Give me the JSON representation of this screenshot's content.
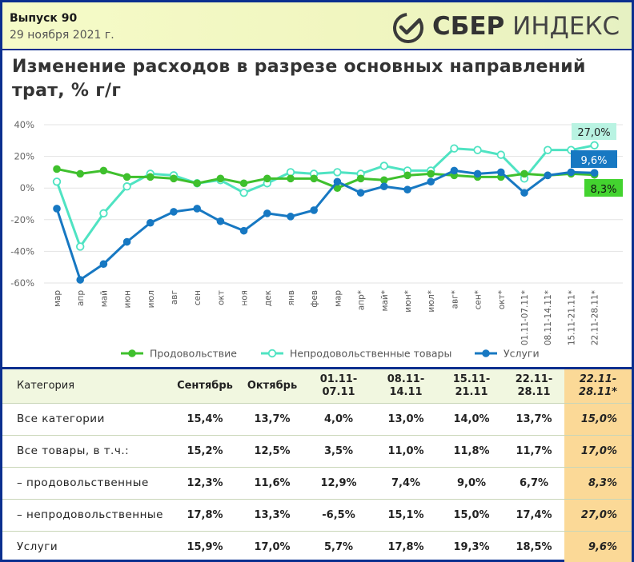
{
  "header": {
    "issue": "Выпуск 90",
    "date": "29 ноября 2021 г.",
    "logo_bold": "СБЕР",
    "logo_light": "ИНДЕКС"
  },
  "colors": {
    "food": "#3fc02d",
    "nonfood": "#4fe3c2",
    "services": "#1778c2",
    "frame": "#0b2f8f",
    "highlight": "#fbd997"
  },
  "chart_data": {
    "type": "line",
    "title": "Изменение расходов в разрезе основных направлений трат, % г/г",
    "ylim": [
      -60,
      40
    ],
    "yticks": [
      40,
      20,
      0,
      -20,
      -40,
      -60
    ],
    "ytick_labels": [
      "40%",
      "20%",
      "0%",
      "-20%",
      "-40%",
      "-60%"
    ],
    "grid": true,
    "legend_position": "bottom",
    "categories": [
      "мар",
      "апр",
      "май",
      "июн",
      "июл",
      "авг",
      "сен",
      "окт",
      "ноя",
      "дек",
      "янв",
      "фев",
      "мар",
      "апр*",
      "май*",
      "июн*",
      "июл*",
      "авг*",
      "сен*",
      "окт*",
      "01.11-07.11*",
      "08.11-14.11*",
      "15.11-21.11*",
      "22.11-28.11*"
    ],
    "series": [
      {
        "name": "Продовольствие",
        "color": "#3fc02d",
        "marker": "filled",
        "values": [
          12,
          9,
          11,
          7,
          7,
          6,
          3,
          6,
          3,
          6,
          6,
          6,
          0,
          6,
          5,
          8,
          9,
          8,
          7,
          7,
          9,
          8,
          9,
          8.3
        ],
        "end_label": "8,3%"
      },
      {
        "name": "Непродовольственные товары",
        "color": "#4fe3c2",
        "marker": "hollow",
        "values": [
          4,
          -37,
          -16,
          1,
          9,
          8,
          3,
          5,
          -3,
          3,
          10,
          9,
          10,
          9,
          14,
          11,
          11,
          25,
          24,
          21,
          6,
          24,
          24,
          27
        ],
        "end_label": "27,0%"
      },
      {
        "name": "Услуги",
        "color": "#1778c2",
        "marker": "filled",
        "values": [
          -13,
          -58,
          -48,
          -34,
          -22,
          -15,
          -13,
          -21,
          -27,
          -16,
          -18,
          -14,
          4,
          -3,
          1,
          -1,
          4,
          11,
          9,
          10,
          -3,
          8,
          10,
          9.6
        ],
        "end_label": "9,6%"
      }
    ]
  },
  "table": {
    "headers": [
      "Категория",
      "Сентябрь",
      "Октябрь",
      "01.11-\n07.11",
      "08.11-\n14.11",
      "15.11-\n21.11",
      "22.11-\n28.11",
      "22.11-\n28.11*"
    ],
    "rows": [
      [
        "Все категории",
        "15,4%",
        "13,7%",
        "4,0%",
        "13,0%",
        "14,0%",
        "13,7%",
        "15,0%"
      ],
      [
        "Все товары, в т.ч.:",
        "15,2%",
        "12,5%",
        "3,5%",
        "11,0%",
        "11,8%",
        "11,7%",
        "17,0%"
      ],
      [
        "– продовольственные",
        "12,3%",
        "11,6%",
        "12,9%",
        "7,4%",
        "9,0%",
        "6,7%",
        "8,3%"
      ],
      [
        "– непродовольственные",
        "17,8%",
        "13,3%",
        "-6,5%",
        "15,1%",
        "15,0%",
        "17,4%",
        "27,0%"
      ],
      [
        "Услуги",
        "15,9%",
        "17,0%",
        "5,7%",
        "17,8%",
        "19,3%",
        "18,5%",
        "9,6%"
      ]
    ]
  }
}
